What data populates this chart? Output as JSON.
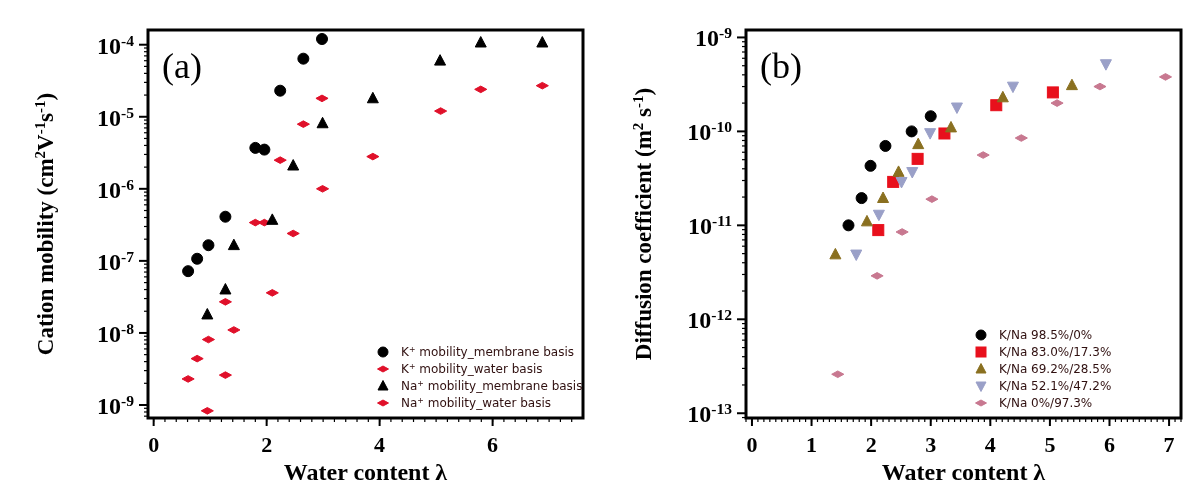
{
  "chart_data": [
    {
      "type": "scatter",
      "title": "(a)",
      "xlabel": "Water content λ",
      "ylabel": "Cation mobility (cm$^{2}$V$^{-1}$s$^{-1}$)",
      "log": "y",
      "xlim": [
        -0.1,
        7.6
      ],
      "xticks": [
        0,
        2,
        4,
        6
      ],
      "ylim": [
        6.6e-10,
        0.00016
      ],
      "yticks": [
        {
          "value": 1e-09,
          "label": "10$^{-9}$"
        },
        {
          "value": 1e-08,
          "label": "10$^{-8}$"
        },
        {
          "value": 1e-07,
          "label": "10$^{-7}$"
        },
        {
          "value": 1e-06,
          "label": "10$^{-6}$"
        },
        {
          "value": 1e-05,
          "label": "10$^{-5}$"
        },
        {
          "value": 0.0001,
          "label": "10$^{-4}$"
        }
      ],
      "legend": "bottom right",
      "series": [
        {
          "name": "K$^{+}$ mobility_membrane basis",
          "color": "#000000",
          "marker": "circle",
          "x": [
            0.61,
            0.77,
            0.97,
            1.27,
            1.8,
            1.96,
            2.24,
            2.65,
            2.98
          ],
          "values": [
            7.2e-08,
            1.07e-07,
            1.65e-07,
            4.1e-07,
            3.7e-06,
            3.5e-06,
            2.3e-05,
            6.4e-05,
            0.00012
          ]
        },
        {
          "name": "K$^{+}$ mobility_water basis",
          "color": "#e0102a",
          "marker": "diamond",
          "x": [
            0.61,
            0.77,
            0.97,
            1.27,
            1.8,
            1.96,
            2.24,
            2.65,
            2.98
          ],
          "values": [
            2.3e-09,
            4.4e-09,
            8.1e-09,
            2.7e-08,
            3.4e-07,
            3.4e-07,
            2.5e-06,
            7.9e-06,
            1.8e-05
          ]
        },
        {
          "name": "Na$^{+}$ mobility_membrane basis",
          "color": "#000000",
          "marker": "triangle",
          "x": [
            0.95,
            1.27,
            1.42,
            2.1,
            2.47,
            2.99,
            3.88,
            5.07,
            5.79,
            6.88
          ],
          "values": [
            1.8e-08,
            4e-08,
            1.65e-07,
            3.7e-07,
            2.1e-06,
            8.1e-06,
            1.8e-05,
            6e-05,
            0.000107,
            0.000107
          ]
        },
        {
          "name": "Na$^{+}$ mobility_water basis",
          "color": "#e0102a",
          "marker": "diamond",
          "x": [
            0.95,
            1.27,
            1.42,
            2.1,
            2.47,
            2.99,
            3.88,
            5.08,
            5.79,
            6.88
          ],
          "values": [
            8.3e-10,
            2.6e-09,
            1.1e-08,
            3.6e-08,
            2.4e-07,
            1e-06,
            2.8e-06,
            1.2e-05,
            2.4e-05,
            2.7e-05
          ]
        }
      ]
    },
    {
      "type": "scatter",
      "title": "(b)",
      "xlabel": "Water content λ",
      "ylabel": "Diffusion coefficient (m$^{2}$ s$^{-1}$)",
      "log": "y",
      "xlim": [
        -0.1,
        7.2
      ],
      "xticks": [
        0,
        1,
        2,
        3,
        4,
        5,
        6,
        7
      ],
      "ylim": [
        8.9e-14,
        1.2e-09
      ],
      "yticks": [
        {
          "value": 1e-13,
          "label": "10$^{-13}$"
        },
        {
          "value": 1e-12,
          "label": "10$^{-12}$"
        },
        {
          "value": 1e-11,
          "label": "10$^{-11}$"
        },
        {
          "value": 1e-10,
          "label": "10$^{-10}$"
        },
        {
          "value": 1e-09,
          "label": "10$^{-9}$"
        }
      ],
      "legend": "bottom right",
      "series": [
        {
          "name": "K/Na 98.5%/0%",
          "color": "#000000",
          "marker": "circle",
          "x": [
            1.62,
            1.84,
            1.99,
            2.24,
            2.68,
            3.0
          ],
          "values": [
            1e-11,
            1.95e-11,
            4.3e-11,
            7e-11,
            1e-10,
            1.45e-10
          ]
        },
        {
          "name": "K/Na 83.0%/17.3%",
          "color": "#e8101c",
          "marker": "square",
          "x": [
            2.12,
            2.37,
            2.78,
            3.23,
            4.1,
            5.05
          ],
          "values": [
            8.9e-12,
            2.9e-11,
            5.1e-11,
            9.5e-11,
            1.9e-10,
            2.6e-10
          ]
        },
        {
          "name": "K/Na 69.2%/28.5%",
          "color": "#8a7020",
          "marker": "triangle",
          "x": [
            1.4,
            1.93,
            2.2,
            2.46,
            2.79,
            3.34,
            4.21,
            5.37
          ],
          "values": [
            4.9e-12,
            1.1e-11,
            1.95e-11,
            3.7e-11,
            7.3e-11,
            1.1e-10,
            2.3e-10,
            3.1e-10
          ]
        },
        {
          "name": "K/Na 52.1%/47.2%",
          "color": "#9aa0c8",
          "marker": "triangle-down",
          "x": [
            1.75,
            2.13,
            2.51,
            2.69,
            2.99,
            3.44,
            4.38,
            5.94
          ],
          "values": [
            4.9e-12,
            1.3e-11,
            2.9e-11,
            3.7e-11,
            9.6e-11,
            1.8e-10,
            3e-10,
            5.2e-10
          ]
        },
        {
          "name": "K/Na 0%/97.3%",
          "color": "#c87890",
          "marker": "diamond",
          "x": [
            1.44,
            2.1,
            2.52,
            3.02,
            3.88,
            4.52,
            5.12,
            5.84,
            6.94
          ],
          "values": [
            2.6e-13,
            2.9e-12,
            8.5e-12,
            1.9e-11,
            5.6e-11,
            8.5e-11,
            2e-10,
            3e-10,
            3.8e-10
          ]
        }
      ]
    }
  ]
}
